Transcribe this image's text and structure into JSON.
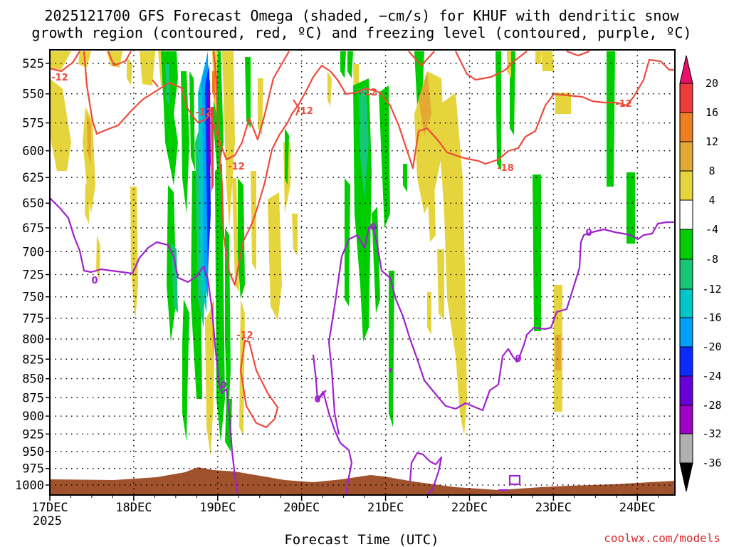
{
  "title_line1": "2025121700 GFS Forecast Omega (shaded, −cm/s) for KHUF with dendritic snow",
  "title_line2": "growth region (contoured, red, ºC) and freezing level (contoured, purple, ºC)",
  "xlabel": "Forecast Time (UTC)",
  "watermark": "coolwx.com/models",
  "year_label": "2025",
  "chart_data": {
    "type": "heatmap",
    "title": "2025121700 GFS Forecast Omega (shaded, −cm/s) for KHUF with dendritic snow growth region (contoured, red, ºC) and freezing level (contoured, purple, ºC)",
    "xlabel": "Forecast Time (UTC)",
    "ylabel": "",
    "x_time_range": [
      "2025-12-17 00Z",
      "2025-12-24 12Z"
    ],
    "x_ticks": [
      "17DEC",
      "18DEC",
      "19DEC",
      "20DEC",
      "21DEC",
      "22DEC",
      "23DEC",
      "24DEC"
    ],
    "y_ticks": [
      525,
      550,
      575,
      600,
      625,
      650,
      675,
      700,
      725,
      750,
      775,
      800,
      825,
      850,
      875,
      900,
      925,
      950,
      975,
      1000
    ],
    "y_range_hpa": [
      1010,
      505
    ],
    "y_scale": "log-pressure",
    "grid": true,
    "colorbar": {
      "labels": [
        "20",
        "16",
        "12",
        "8",
        "4",
        "-4",
        "-8",
        "-12",
        "-16",
        "-20",
        "-24",
        "-28",
        "-32",
        "-36"
      ],
      "colors": [
        "#e8106a",
        "#ee3b3b",
        "#ee7f20",
        "#e3a932",
        "#e6d43c",
        "#ffffff",
        "#00cd00",
        "#16c777",
        "#00c8c8",
        "#00a0ff",
        "#0a2aff",
        "#6a00d8",
        "#a000c8",
        "#b0b0b0",
        "#000000"
      ]
    },
    "contours": [
      {
        "color": "#ee4b3b",
        "labels": [
          "-12",
          "-12",
          "-12",
          "-12",
          "-18",
          "-12",
          "-12",
          "-12"
        ]
      },
      {
        "color": "#a020d0",
        "labels": [
          "0",
          "0",
          "0",
          "0",
          "0",
          "0"
        ]
      }
    ],
    "terrain_color": "#a0522d"
  }
}
